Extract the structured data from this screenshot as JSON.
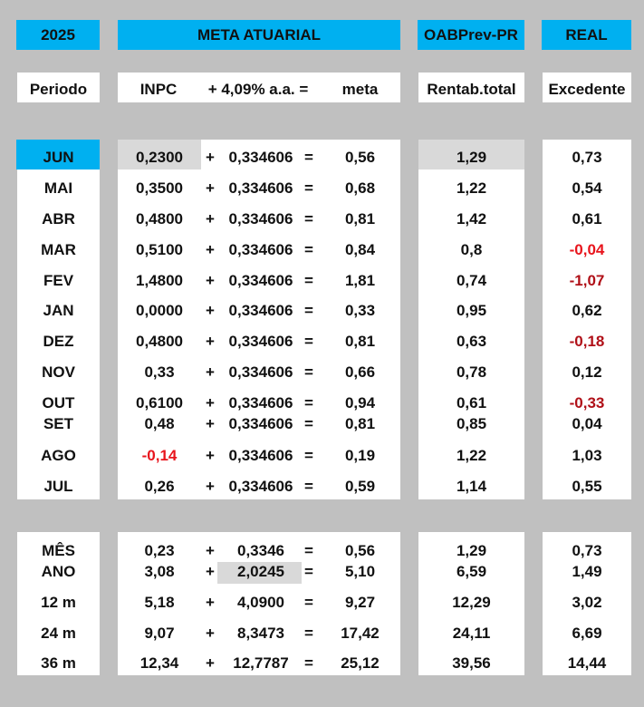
{
  "header": {
    "year": "2025",
    "meta_title": "META ATUARIAL",
    "fund_title": "OABPrev-PR",
    "real_title": "REAL"
  },
  "subheader": {
    "periodo": "Periodo",
    "inpc": "INPC",
    "plus_rate": "+ 4,09% a.a. =",
    "meta": "meta",
    "rentab": "Rentab.total",
    "excedente": "Excedente"
  },
  "colors": {
    "header_blue": "#00b0f0",
    "background": "#c0c0c0",
    "highlight_gray": "#d9d9d9",
    "negative_red": "#e8141c",
    "negative_dark_red": "#b01018"
  },
  "monthly_rows": [
    {
      "period": "JUN",
      "inpc": "0,2300",
      "plus": "+",
      "rate": "0,334606",
      "eq": "=",
      "meta": "0,56",
      "rentab": "1,29",
      "excedente": "0,73",
      "inpc_neg": false,
      "exc_neg": ""
    },
    {
      "period": "MAI",
      "inpc": "0,3500",
      "plus": "+",
      "rate": "0,334606",
      "eq": "=",
      "meta": "0,68",
      "rentab": "1,22",
      "excedente": "0,54",
      "inpc_neg": false,
      "exc_neg": ""
    },
    {
      "period": "ABR",
      "inpc": "0,4800",
      "plus": "+",
      "rate": "0,334606",
      "eq": "=",
      "meta": "0,81",
      "rentab": "1,42",
      "excedente": "0,61",
      "inpc_neg": false,
      "exc_neg": ""
    },
    {
      "period": "MAR",
      "inpc": "0,5100",
      "plus": "+",
      "rate": "0,334606",
      "eq": "=",
      "meta": "0,84",
      "rentab": "0,8",
      "excedente": "-0,04",
      "inpc_neg": false,
      "exc_neg": "red"
    },
    {
      "period": "FEV",
      "inpc": "1,4800",
      "plus": "+",
      "rate": "0,334606",
      "eq": "=",
      "meta": "1,81",
      "rentab": "0,74",
      "excedente": "-1,07",
      "inpc_neg": false,
      "exc_neg": "dark"
    },
    {
      "period": "JAN",
      "inpc": "0,0000",
      "plus": "+",
      "rate": "0,334606",
      "eq": "=",
      "meta": "0,33",
      "rentab": "0,95",
      "excedente": "0,62",
      "inpc_neg": false,
      "exc_neg": ""
    },
    {
      "period": "DEZ",
      "inpc": "0,4800",
      "plus": "+",
      "rate": "0,334606",
      "eq": "=",
      "meta": "0,81",
      "rentab": "0,63",
      "excedente": "-0,18",
      "inpc_neg": false,
      "exc_neg": "dark"
    },
    {
      "period": "NOV",
      "inpc": "0,33",
      "plus": "+",
      "rate": "0,334606",
      "eq": "=",
      "meta": "0,66",
      "rentab": "0,78",
      "excedente": "0,12",
      "inpc_neg": false,
      "exc_neg": ""
    },
    {
      "period": "OUT",
      "inpc": "0,6100",
      "plus": "+",
      "rate": "0,334606",
      "eq": "=",
      "meta": "0,94",
      "rentab": "0,61",
      "excedente": "-0,33",
      "inpc_neg": false,
      "exc_neg": "dark"
    },
    {
      "period": "SET",
      "inpc": "0,48",
      "plus": "+",
      "rate": "0,334606",
      "eq": "=",
      "meta": "0,81",
      "rentab": "0,85",
      "excedente": "0,04",
      "inpc_neg": false,
      "exc_neg": ""
    },
    {
      "period": "AGO",
      "inpc": "-0,14",
      "plus": "+",
      "rate": "0,334606",
      "eq": "=",
      "meta": "0,19",
      "rentab": "1,22",
      "excedente": "1,03",
      "inpc_neg": true,
      "exc_neg": ""
    },
    {
      "period": "JUL",
      "inpc": "0,26",
      "plus": "+",
      "rate": "0,334606",
      "eq": "=",
      "meta": "0,59",
      "rentab": "1,14",
      "excedente": "0,55",
      "inpc_neg": false,
      "exc_neg": ""
    }
  ],
  "summary_rows": [
    {
      "period": "MÊS",
      "inpc": "0,23",
      "plus": "+",
      "rate": "0,3346",
      "eq": "=",
      "meta": "0,56",
      "rentab": "1,29",
      "excedente": "0,73"
    },
    {
      "period": "ANO",
      "inpc": "3,08",
      "plus": "+",
      "rate": "2,0245",
      "eq": "=",
      "meta": "5,10",
      "rentab": "6,59",
      "excedente": "1,49"
    },
    {
      "period": "12 m",
      "inpc": "5,18",
      "plus": "+",
      "rate": "4,0900",
      "eq": "=",
      "meta": "9,27",
      "rentab": "12,29",
      "excedente": "3,02"
    },
    {
      "period": "24 m",
      "inpc": "9,07",
      "plus": "+",
      "rate": "8,3473",
      "eq": "=",
      "meta": "17,42",
      "rentab": "24,11",
      "excedente": "6,69"
    },
    {
      "period": "36 m",
      "inpc": "12,34",
      "plus": "+",
      "rate": "12,7787",
      "eq": "=",
      "meta": "25,12",
      "rentab": "39,56",
      "excedente": "14,44"
    }
  ]
}
